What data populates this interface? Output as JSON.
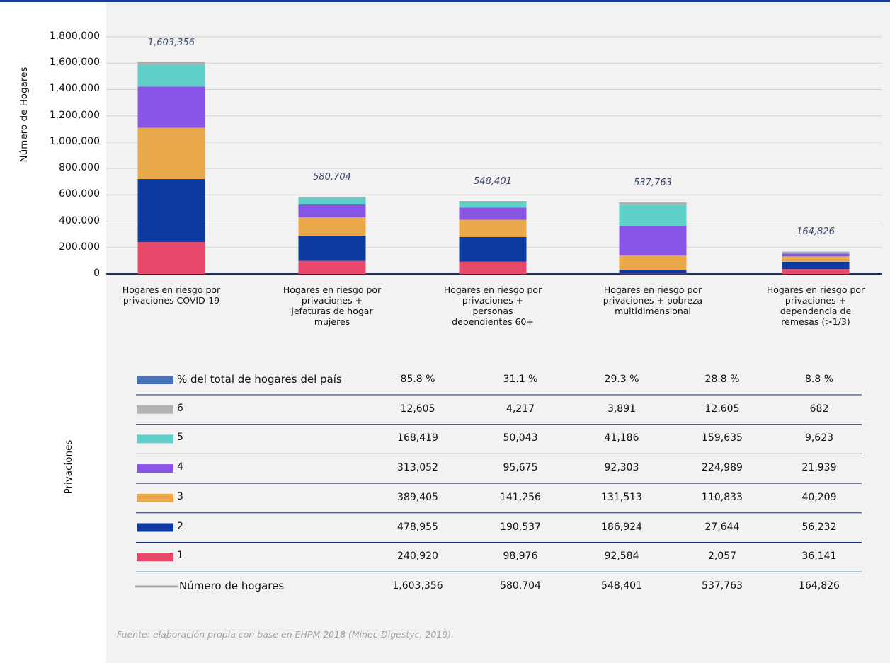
{
  "chart_data": {
    "type": "stacked_bar",
    "y_axis_label": "Número de Hogares",
    "table_axis_label": "Privaciones",
    "source": "Fuente: elaboración propia con base en EHPM 2018 (Minec-Digestyc, 2019).",
    "categories": [
      "Hogares en riesgo por\nprivaciones COVID-19",
      "Hogares en riesgo por\nprivaciones +\njefaturas de hogar\nmujeres",
      "Hogares en riesgo por\nprivaciones +\npersonas\ndependientes 60+",
      "Hogares en riesgo por\nprivaciones + pobreza\nmultidimensional",
      "Hogares en riesgo por\nprivaciones +\ndependencia de\nremesas (>1/3)"
    ],
    "ylim": [
      0,
      1800000
    ],
    "yticks": [
      0,
      {
        "value": 200000,
        "label": "200,000"
      },
      {
        "value": 400000,
        "label": "400,000"
      },
      {
        "value": 600000,
        "label": "600,000"
      },
      {
        "value": 800000,
        "label": "800,000"
      },
      {
        "value": 1000000,
        "label": "1,000,000"
      },
      {
        "value": 1200000,
        "label": "1,200,000"
      },
      {
        "value": 1400000,
        "label": "1,400,000"
      },
      {
        "value": 1600000,
        "label": "1,600,000"
      },
      {
        "value": 1800000,
        "label": "1,800,000"
      }
    ],
    "series": [
      {
        "name": "1",
        "color": "#e8496a",
        "values": [
          240920,
          98976,
          92584,
          2057,
          36141
        ],
        "value_labels": [
          "240,920",
          "98,976",
          "92,584",
          "2,057",
          "36,141"
        ]
      },
      {
        "name": "2",
        "color": "#0d3aa0",
        "values": [
          478955,
          190537,
          186924,
          27644,
          56232
        ],
        "value_labels": [
          "478,955",
          "190,537",
          "186,924",
          "27,644",
          "56,232"
        ]
      },
      {
        "name": "3",
        "color": "#e9a94b",
        "values": [
          389405,
          141256,
          131513,
          110833,
          40209
        ],
        "value_labels": [
          "389,405",
          "141,256",
          "131,513",
          "110,833",
          "40,209"
        ]
      },
      {
        "name": "4",
        "color": "#8955e6",
        "values": [
          313052,
          95675,
          92303,
          224989,
          21939
        ],
        "value_labels": [
          "313,052",
          "95,675",
          "92,303",
          "224,989",
          "21,939"
        ]
      },
      {
        "name": "5",
        "color": "#5fcfca",
        "values": [
          168419,
          50043,
          41186,
          159635,
          9623
        ],
        "value_labels": [
          "168,419",
          "50,043",
          "41,186",
          "159,635",
          "9,623"
        ]
      },
      {
        "name": "6",
        "color": "#b3b3b3",
        "values": [
          12605,
          4217,
          3891,
          12605,
          682
        ],
        "value_labels": [
          "12,605",
          "4,217",
          "3,891",
          "12,605",
          "682"
        ]
      }
    ],
    "totals": {
      "name": "Número de hogares",
      "color": "#a9a9a9",
      "values": [
        1603356,
        580704,
        548401,
        537763,
        164826
      ],
      "value_labels": [
        "1,603,356",
        "580,704",
        "548,401",
        "537,763",
        "164,826"
      ]
    },
    "share": {
      "name": "% del total de hogares del país",
      "color": "#4a72b8",
      "values": [
        85.8,
        31.1,
        29.3,
        28.8,
        8.8
      ],
      "value_labels": [
        "85.8 %",
        "31.1 %",
        "29.3 %",
        "28.8 %",
        "8.8 %"
      ]
    }
  }
}
